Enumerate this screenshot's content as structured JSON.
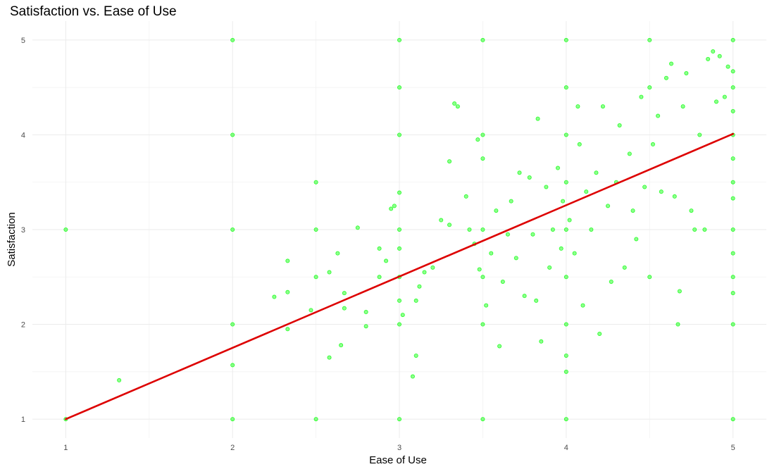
{
  "chart_data": {
    "type": "scatter",
    "title": "Satisfaction vs. Ease of Use",
    "xlabel": "Ease of Use",
    "ylabel": "Satisfaction",
    "xlim": [
      0.8,
      5.2
    ],
    "ylim": [
      0.8,
      5.2
    ],
    "x_ticks": [
      "1",
      "2",
      "3",
      "4",
      "5"
    ],
    "y_ticks": [
      "1",
      "2",
      "3",
      "4",
      "5"
    ],
    "grid": true,
    "legend": "none",
    "point_color": "#00ff00",
    "line_color": "#dd0000",
    "regression_line": {
      "x": [
        1,
        5
      ],
      "y": [
        1.0,
        4.01
      ]
    },
    "points": [
      [
        1,
        1
      ],
      [
        1,
        3
      ],
      [
        1.32,
        1.41
      ],
      [
        2,
        1
      ],
      [
        2,
        1.57
      ],
      [
        2,
        2
      ],
      [
        2,
        3
      ],
      [
        2,
        4
      ],
      [
        2,
        5
      ],
      [
        2.25,
        2.29
      ],
      [
        2.33,
        1.95
      ],
      [
        2.33,
        2.34
      ],
      [
        2.33,
        2.67
      ],
      [
        2.5,
        1
      ],
      [
        2.5,
        2.5
      ],
      [
        2.5,
        3
      ],
      [
        2.5,
        3.5
      ],
      [
        2.47,
        2.15
      ],
      [
        2.58,
        1.65
      ],
      [
        2.58,
        2.55
      ],
      [
        2.63,
        2.75
      ],
      [
        2.67,
        2.17
      ],
      [
        2.67,
        2.33
      ],
      [
        2.65,
        1.78
      ],
      [
        2.75,
        3.02
      ],
      [
        2.8,
        1.98
      ],
      [
        2.8,
        2.13
      ],
      [
        2.88,
        2.8
      ],
      [
        2.88,
        2.5
      ],
      [
        2.92,
        2.67
      ],
      [
        2.95,
        3.22
      ],
      [
        2.97,
        3.25
      ],
      [
        3,
        1
      ],
      [
        3,
        2
      ],
      [
        3,
        2.5
      ],
      [
        3,
        2.8
      ],
      [
        3,
        3
      ],
      [
        3,
        3.39
      ],
      [
        3,
        4
      ],
      [
        3,
        4.5
      ],
      [
        3,
        5
      ],
      [
        3,
        2.25
      ],
      [
        3.02,
        2.1
      ],
      [
        3.08,
        1.45
      ],
      [
        3.1,
        1.67
      ],
      [
        3.1,
        2.25
      ],
      [
        3.12,
        2.4
      ],
      [
        3.15,
        2.55
      ],
      [
        3.2,
        2.6
      ],
      [
        3.25,
        3.1
      ],
      [
        3.3,
        3.05
      ],
      [
        3.33,
        4.33
      ],
      [
        3.35,
        4.3
      ],
      [
        3.3,
        3.72
      ],
      [
        3.4,
        3.35
      ],
      [
        3.42,
        3.0
      ],
      [
        3.45,
        2.85
      ],
      [
        3.48,
        2.58
      ],
      [
        3.5,
        1
      ],
      [
        3.5,
        2
      ],
      [
        3.5,
        2.5
      ],
      [
        3.5,
        3.0
      ],
      [
        3.5,
        3.75
      ],
      [
        3.5,
        4.0
      ],
      [
        3.5,
        5
      ],
      [
        3.47,
        3.95
      ],
      [
        3.52,
        2.2
      ],
      [
        3.55,
        2.75
      ],
      [
        3.58,
        3.2
      ],
      [
        3.6,
        1.77
      ],
      [
        3.62,
        2.45
      ],
      [
        3.65,
        2.95
      ],
      [
        3.67,
        3.3
      ],
      [
        3.7,
        2.7
      ],
      [
        3.72,
        3.6
      ],
      [
        3.75,
        2.3
      ],
      [
        3.78,
        3.55
      ],
      [
        3.8,
        2.95
      ],
      [
        3.82,
        2.25
      ],
      [
        3.83,
        4.17
      ],
      [
        3.85,
        1.82
      ],
      [
        3.88,
        3.45
      ],
      [
        3.9,
        2.6
      ],
      [
        3.92,
        3.0
      ],
      [
        3.95,
        3.65
      ],
      [
        3.97,
        2.8
      ],
      [
        3.98,
        3.3
      ],
      [
        4,
        1
      ],
      [
        4,
        1.5
      ],
      [
        4,
        1.67
      ],
      [
        4,
        2
      ],
      [
        4,
        2.5
      ],
      [
        4,
        3
      ],
      [
        4,
        3.5
      ],
      [
        4,
        4
      ],
      [
        4,
        4.5
      ],
      [
        4,
        5
      ],
      [
        4.02,
        3.1
      ],
      [
        4.05,
        2.75
      ],
      [
        4.07,
        4.3
      ],
      [
        4.08,
        3.9
      ],
      [
        4.1,
        2.2
      ],
      [
        4.12,
        3.4
      ],
      [
        4.15,
        3.0
      ],
      [
        4.18,
        3.6
      ],
      [
        4.2,
        1.9
      ],
      [
        4.22,
        4.3
      ],
      [
        4.25,
        3.25
      ],
      [
        4.27,
        2.45
      ],
      [
        4.3,
        3.5
      ],
      [
        4.32,
        4.1
      ],
      [
        4.35,
        2.6
      ],
      [
        4.38,
        3.8
      ],
      [
        4.4,
        3.2
      ],
      [
        4.42,
        2.9
      ],
      [
        4.45,
        4.4
      ],
      [
        4.47,
        3.45
      ],
      [
        4.5,
        2.5
      ],
      [
        4.5,
        4.5
      ],
      [
        4.5,
        5
      ],
      [
        4.52,
        3.9
      ],
      [
        4.55,
        4.2
      ],
      [
        4.57,
        3.4
      ],
      [
        4.6,
        4.6
      ],
      [
        4.63,
        4.75
      ],
      [
        4.65,
        3.35
      ],
      [
        4.67,
        2.0
      ],
      [
        4.68,
        2.35
      ],
      [
        4.7,
        4.3
      ],
      [
        4.72,
        4.65
      ],
      [
        4.75,
        3.2
      ],
      [
        4.77,
        3.0
      ],
      [
        4.8,
        4.0
      ],
      [
        4.83,
        3.0
      ],
      [
        4.85,
        4.8
      ],
      [
        4.88,
        4.88
      ],
      [
        4.9,
        4.35
      ],
      [
        4.92,
        4.83
      ],
      [
        4.95,
        4.4
      ],
      [
        4.97,
        4.72
      ],
      [
        5,
        1
      ],
      [
        5,
        2
      ],
      [
        5,
        2.33
      ],
      [
        5,
        2.5
      ],
      [
        5,
        2.75
      ],
      [
        5,
        3
      ],
      [
        5,
        3.33
      ],
      [
        5,
        3.5
      ],
      [
        5,
        3.75
      ],
      [
        5,
        4
      ],
      [
        5,
        4.25
      ],
      [
        5,
        4.5
      ],
      [
        5,
        4.67
      ],
      [
        5,
        5
      ]
    ]
  }
}
